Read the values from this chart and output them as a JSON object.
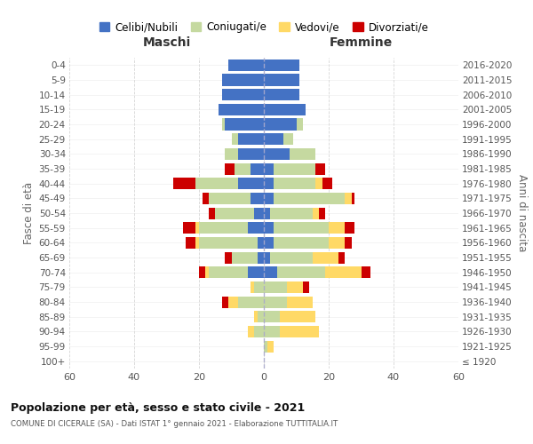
{
  "age_groups": [
    "100+",
    "95-99",
    "90-94",
    "85-89",
    "80-84",
    "75-79",
    "70-74",
    "65-69",
    "60-64",
    "55-59",
    "50-54",
    "45-49",
    "40-44",
    "35-39",
    "30-34",
    "25-29",
    "20-24",
    "15-19",
    "10-14",
    "5-9",
    "0-4"
  ],
  "birth_years": [
    "≤ 1920",
    "1921-1925",
    "1926-1930",
    "1931-1935",
    "1936-1940",
    "1941-1945",
    "1946-1950",
    "1951-1955",
    "1956-1960",
    "1961-1965",
    "1966-1970",
    "1971-1975",
    "1976-1980",
    "1981-1985",
    "1986-1990",
    "1991-1995",
    "1996-2000",
    "2001-2005",
    "2006-2010",
    "2011-2015",
    "2016-2020"
  ],
  "maschi": {
    "celibi": [
      0,
      0,
      0,
      0,
      0,
      0,
      5,
      2,
      2,
      5,
      3,
      4,
      8,
      4,
      8,
      8,
      12,
      14,
      13,
      13,
      11
    ],
    "coniugati": [
      0,
      0,
      3,
      2,
      8,
      3,
      12,
      8,
      18,
      15,
      12,
      13,
      13,
      5,
      4,
      2,
      1,
      0,
      0,
      0,
      0
    ],
    "vedovi": [
      0,
      0,
      2,
      1,
      3,
      1,
      1,
      0,
      1,
      1,
      0,
      0,
      0,
      0,
      0,
      0,
      0,
      0,
      0,
      0,
      0
    ],
    "divorziati": [
      0,
      0,
      0,
      0,
      2,
      0,
      2,
      2,
      3,
      4,
      2,
      2,
      7,
      3,
      0,
      0,
      0,
      0,
      0,
      0,
      0
    ]
  },
  "femmine": {
    "nubili": [
      0,
      0,
      0,
      0,
      0,
      0,
      4,
      2,
      3,
      3,
      2,
      3,
      3,
      3,
      8,
      6,
      10,
      13,
      11,
      11,
      11
    ],
    "coniugate": [
      0,
      1,
      5,
      5,
      7,
      7,
      15,
      13,
      17,
      17,
      13,
      22,
      13,
      13,
      8,
      3,
      2,
      0,
      0,
      0,
      0
    ],
    "vedove": [
      0,
      2,
      12,
      11,
      8,
      5,
      11,
      8,
      5,
      5,
      2,
      2,
      2,
      0,
      0,
      0,
      0,
      0,
      0,
      0,
      0
    ],
    "divorziate": [
      0,
      0,
      0,
      0,
      0,
      2,
      3,
      2,
      2,
      3,
      2,
      1,
      3,
      3,
      0,
      0,
      0,
      0,
      0,
      0,
      0
    ]
  },
  "colors": {
    "celibi": "#4472c4",
    "coniugati": "#c5d9a0",
    "vedovi": "#ffd966",
    "divorziati": "#cc0000"
  },
  "title": "Popolazione per età, sesso e stato civile - 2021",
  "subtitle": "COMUNE DI CICERALE (SA) - Dati ISTAT 1° gennaio 2021 - Elaborazione TUTTITALIA.IT",
  "xlabel_left": "Maschi",
  "xlabel_right": "Femmine",
  "ylabel_left": "Fasce di età",
  "ylabel_right": "Anni di nascita",
  "xlim": 60,
  "legend_labels": [
    "Celibi/Nubili",
    "Coniugati/e",
    "Vedovi/e",
    "Divorziati/e"
  ],
  "bg_color": "#ffffff",
  "grid_color": "#cccccc"
}
